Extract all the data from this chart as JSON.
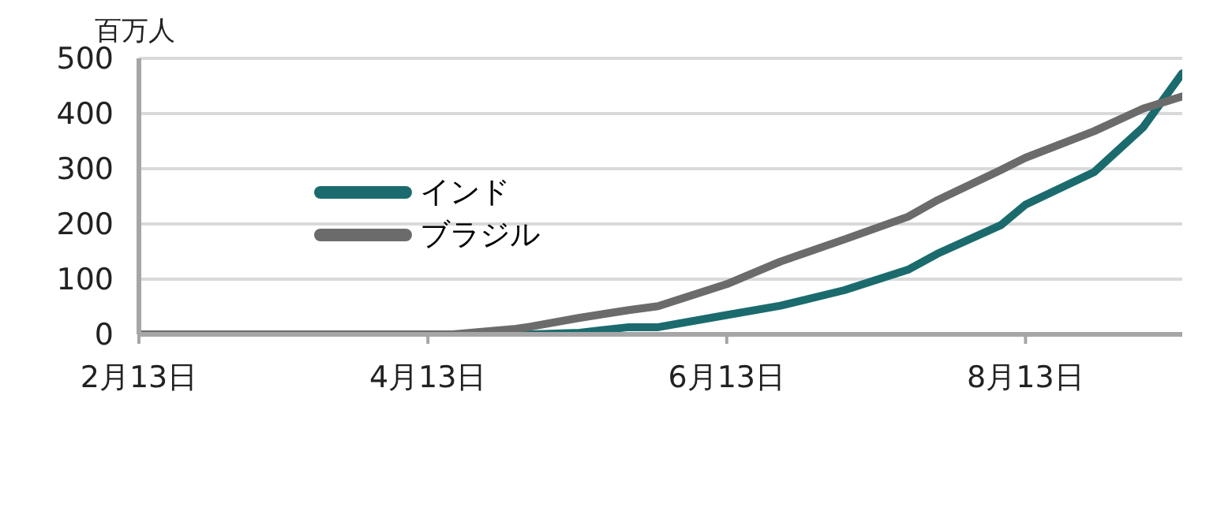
{
  "chart_data": {
    "type": "line",
    "ylabel": "百万人",
    "x": [
      "--02-13",
      "--04-18",
      "--05-01",
      "--05-04",
      "--05-14",
      "--05-24",
      "--05-30",
      "--06-13",
      "--06-24",
      "--07-07",
      "--07-20",
      "--07-26",
      "--08-08",
      "--08-13",
      "--08-27",
      "--09-06",
      "--09-14"
    ],
    "series": [
      {
        "name": "インド",
        "color": "#1b6b6e",
        "values": [
          0,
          0,
          0,
          0,
          3,
          13,
          13,
          35,
          52,
          80,
          117,
          146,
          198,
          235,
          294,
          375,
          473
        ]
      },
      {
        "name": "ブラジル",
        "color": "#6b6b6b",
        "values": [
          0,
          0,
          10,
          14,
          30,
          44,
          51,
          91,
          132,
          172,
          213,
          243,
          298,
          320,
          368,
          409,
          431
        ]
      }
    ],
    "xlim": [
      "--02-13",
      "--09-14"
    ],
    "xticks": [
      {
        "value": "--02-13",
        "label": "2月13日"
      },
      {
        "value": "--04-13",
        "label": "4月13日"
      },
      {
        "value": "--06-13",
        "label": "6月13日"
      },
      {
        "value": "--08-13",
        "label": "8月13日"
      }
    ],
    "ylim": [
      0,
      500
    ],
    "yticks": [
      0,
      100,
      200,
      300,
      400,
      500
    ],
    "grid": "y",
    "legend": "center",
    "marker": "none",
    "line_style": "solid"
  }
}
